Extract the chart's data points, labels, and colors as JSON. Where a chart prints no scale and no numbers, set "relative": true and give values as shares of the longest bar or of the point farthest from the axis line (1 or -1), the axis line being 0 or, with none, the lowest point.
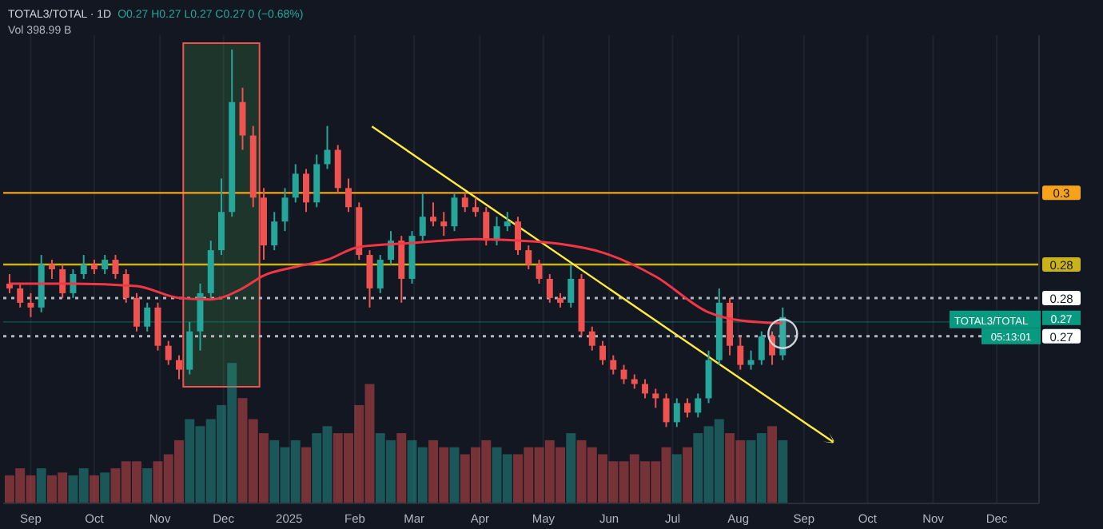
{
  "chart_data": [
    {
      "type": "candlestick",
      "title": "TOTAL3/TOTAL · 1D",
      "annotations": [
        "O0.27 H0.27 L0.27 C0.27 0 (−0.68%)",
        "Vol 398.99 B",
        {
          "text": "TOTAL3/TOTAL",
          "y": 0.273
        },
        "05:13:01"
      ],
      "x": [
        "2024-08-22",
        "2024-08-27",
        "2024-09-01",
        "2024-09-06",
        "2024-09-11",
        "2024-09-16",
        "2024-09-21",
        "2024-09-26",
        "2024-10-01",
        "2024-10-06",
        "2024-10-11",
        "2024-10-16",
        "2024-10-21",
        "2024-10-26",
        "2024-10-31",
        "2024-11-05",
        "2024-11-10",
        "2024-11-15",
        "2024-11-20",
        "2024-11-25",
        "2024-11-30",
        "2024-12-05",
        "2024-12-10",
        "2024-12-15",
        "2024-12-20",
        "2024-12-25",
        "2024-12-30",
        "2025-01-04",
        "2025-01-09",
        "2025-01-14",
        "2025-01-19",
        "2025-01-24",
        "2025-01-29",
        "2025-02-03",
        "2025-02-08",
        "2025-02-13",
        "2025-02-18",
        "2025-02-23",
        "2025-02-28",
        "2025-03-05",
        "2025-03-10",
        "2025-03-15",
        "2025-03-20",
        "2025-03-25",
        "2025-03-30",
        "2025-04-04",
        "2025-04-09",
        "2025-04-14",
        "2025-04-19",
        "2025-04-24",
        "2025-04-29",
        "2025-05-04",
        "2025-05-09",
        "2025-05-14",
        "2025-05-19",
        "2025-05-24",
        "2025-05-29",
        "2025-06-03",
        "2025-06-08",
        "2025-06-13",
        "2025-06-18",
        "2025-06-23",
        "2025-06-28",
        "2025-07-03",
        "2025-07-08",
        "2025-07-13",
        "2025-07-18",
        "2025-07-23",
        "2025-07-28",
        "2025-08-02",
        "2025-08-07",
        "2025-08-12",
        "2025-08-17",
        "2025-08-22"
      ],
      "series": [
        {
          "colors": [
            "#ef5350",
            "#ef5350",
            "#ef5350",
            "#26a69a",
            "#ef5350",
            "#ef5350",
            "#26a69a",
            "#26a69a",
            "#ef5350",
            "#26a69a",
            "#ef5350",
            "#ef5350",
            "#ef5350",
            "#26a69a",
            "#ef5350",
            "#ef5350",
            "#ef5350",
            "#26a69a",
            "#26a69a",
            "#26a69a",
            "#26a69a",
            "#26a69a",
            "#ef5350",
            "#ef5350",
            "#ef5350",
            "#26a69a",
            "#26a69a",
            "#26a69a",
            "#ef5350",
            "#26a69a",
            "#26a69a",
            "#ef5350",
            "#ef5350",
            "#ef5350",
            "#ef5350",
            "#26a69a",
            "#26a69a",
            "#ef5350",
            "#26a69a",
            "#26a69a",
            "#ef5350",
            "#ef5350",
            "#26a69a",
            "#ef5350",
            "#ef5350",
            "#ef5350",
            "#26a69a",
            "#26a69a",
            "#ef5350",
            "#ef5350",
            "#ef5350",
            "#ef5350",
            "#ef5350",
            "#26a69a",
            "#ef5350",
            "#ef5350",
            "#ef5350",
            "#ef5350",
            "#ef5350",
            "#ef5350",
            "#ef5350",
            "#ef5350",
            "#ef5350",
            "#26a69a",
            "#ef5350",
            "#26a69a",
            "#26a69a",
            "#26a69a",
            "#ef5350",
            "#ef5350",
            "#26a69a",
            "#26a69a",
            "#ef5350",
            "#26a69a"
          ],
          "ohlc": [
            [
              0.281,
              0.283,
              0.279,
              0.28
            ],
            [
              0.28,
              0.281,
              0.276,
              0.277
            ],
            [
              0.277,
              0.279,
              0.274,
              0.276
            ],
            [
              0.276,
              0.287,
              0.275,
              0.285
            ],
            [
              0.285,
              0.286,
              0.282,
              0.284
            ],
            [
              0.284,
              0.285,
              0.278,
              0.279
            ],
            [
              0.279,
              0.284,
              0.278,
              0.283
            ],
            [
              0.283,
              0.287,
              0.282,
              0.285
            ],
            [
              0.285,
              0.286,
              0.283,
              0.284
            ],
            [
              0.284,
              0.287,
              0.283,
              0.286
            ],
            [
              0.286,
              0.287,
              0.282,
              0.283
            ],
            [
              0.283,
              0.284,
              0.277,
              0.278
            ],
            [
              0.278,
              0.279,
              0.271,
              0.272
            ],
            [
              0.272,
              0.277,
              0.271,
              0.276
            ],
            [
              0.276,
              0.277,
              0.267,
              0.268
            ],
            [
              0.268,
              0.269,
              0.264,
              0.265
            ],
            [
              0.265,
              0.266,
              0.261,
              0.263
            ],
            [
              0.263,
              0.273,
              0.262,
              0.271
            ],
            [
              0.271,
              0.281,
              0.267,
              0.279
            ],
            [
              0.279,
              0.29,
              0.278,
              0.288
            ],
            [
              0.288,
              0.303,
              0.287,
              0.296
            ],
            [
              0.296,
              0.33,
              0.295,
              0.319
            ],
            [
              0.319,
              0.322,
              0.309,
              0.312
            ],
            [
              0.312,
              0.314,
              0.297,
              0.299
            ],
            [
              0.299,
              0.301,
              0.286,
              0.289
            ],
            [
              0.289,
              0.296,
              0.288,
              0.294
            ],
            [
              0.294,
              0.301,
              0.292,
              0.299
            ],
            [
              0.299,
              0.306,
              0.298,
              0.304
            ],
            [
              0.304,
              0.305,
              0.296,
              0.298
            ],
            [
              0.298,
              0.308,
              0.297,
              0.306
            ],
            [
              0.306,
              0.314,
              0.305,
              0.309
            ],
            [
              0.309,
              0.31,
              0.3,
              0.301
            ],
            [
              0.301,
              0.303,
              0.296,
              0.297
            ],
            [
              0.297,
              0.298,
              0.286,
              0.287
            ],
            [
              0.287,
              0.288,
              0.276,
              0.28
            ],
            [
              0.28,
              0.287,
              0.279,
              0.286
            ],
            [
              0.286,
              0.292,
              0.285,
              0.29
            ],
            [
              0.29,
              0.291,
              0.277,
              0.282
            ],
            [
              0.282,
              0.292,
              0.281,
              0.291
            ],
            [
              0.291,
              0.3,
              0.29,
              0.295
            ],
            [
              0.295,
              0.298,
              0.293,
              0.294
            ],
            [
              0.294,
              0.296,
              0.291,
              0.293
            ],
            [
              0.293,
              0.3,
              0.292,
              0.299
            ],
            [
              0.299,
              0.3,
              0.296,
              0.297
            ],
            [
              0.297,
              0.299,
              0.295,
              0.296
            ],
            [
              0.296,
              0.297,
              0.289,
              0.29
            ],
            [
              0.29,
              0.295,
              0.289,
              0.293
            ],
            [
              0.293,
              0.296,
              0.292,
              0.294
            ],
            [
              0.294,
              0.295,
              0.287,
              0.288
            ],
            [
              0.288,
              0.289,
              0.284,
              0.285
            ],
            [
              0.285,
              0.286,
              0.281,
              0.282
            ],
            [
              0.282,
              0.283,
              0.277,
              0.278
            ],
            [
              0.278,
              0.279,
              0.276,
              0.277
            ],
            [
              0.277,
              0.285,
              0.276,
              0.282
            ],
            [
              0.282,
              0.283,
              0.27,
              0.271
            ],
            [
              0.271,
              0.272,
              0.267,
              0.268
            ],
            [
              0.268,
              0.269,
              0.264,
              0.265
            ],
            [
              0.265,
              0.266,
              0.262,
              0.263
            ],
            [
              0.263,
              0.264,
              0.26,
              0.261
            ],
            [
              0.261,
              0.262,
              0.259,
              0.26
            ],
            [
              0.26,
              0.261,
              0.257,
              0.258
            ],
            [
              0.258,
              0.259,
              0.255,
              0.257
            ],
            [
              0.257,
              0.258,
              0.251,
              0.252
            ],
            [
              0.252,
              0.257,
              0.251,
              0.256
            ],
            [
              0.256,
              0.257,
              0.253,
              0.254
            ],
            [
              0.254,
              0.258,
              0.253,
              0.257
            ],
            [
              0.257,
              0.267,
              0.256,
              0.265
            ],
            [
              0.265,
              0.28,
              0.264,
              0.277
            ],
            [
              0.277,
              0.278,
              0.266,
              0.268
            ],
            [
              0.268,
              0.27,
              0.263,
              0.264
            ],
            [
              0.264,
              0.267,
              0.263,
              0.265
            ],
            [
              0.265,
              0.271,
              0.264,
              0.27
            ],
            [
              0.27,
              0.271,
              0.264,
              0.266
            ],
            [
              0.266,
              0.276,
              0.265,
              0.274
            ]
          ]
        },
        {
          "type": "line",
          "color": "#f23645",
          "x": [
            "2024-08-22",
            "2024-09-21",
            "2024-10-21",
            "2024-11-10",
            "2024-11-25",
            "2024-12-10",
            "2024-12-20",
            "2025-01-04",
            "2025-01-19",
            "2025-02-03",
            "2025-02-28",
            "2025-03-30",
            "2025-04-19",
            "2025-05-09",
            "2025-05-29",
            "2025-06-23",
            "2025-07-18",
            "2025-08-02",
            "2025-08-22"
          ],
          "values": [
            0.281,
            0.281,
            0.2805,
            0.278,
            0.2777,
            0.28,
            0.2827,
            0.2845,
            0.286,
            0.2887,
            0.2895,
            0.2903,
            0.29,
            0.2893,
            0.2875,
            0.2825,
            0.275,
            0.2733,
            0.2727
          ]
        }
      ],
      "xlim": [
        "2024-08-19",
        "2025-12-21"
      ],
      "xticks": [
        {
          "value": "2024-09-01",
          "label": "Sep"
        },
        {
          "value": "2024-10-01",
          "label": "Oct"
        },
        {
          "value": "2024-11-01",
          "label": "Nov"
        },
        {
          "value": "2024-12-01",
          "label": "Dec"
        },
        {
          "value": "2025-01-01",
          "label": "2025"
        },
        {
          "value": "2025-02-01",
          "label": "Feb"
        },
        {
          "value": "2025-03-01",
          "label": "Mar"
        },
        {
          "value": "2025-04-01",
          "label": "Apr"
        },
        {
          "value": "2025-05-01",
          "label": "May"
        },
        {
          "value": "2025-06-01",
          "label": "Jun"
        },
        {
          "value": "2025-07-01",
          "label": "Jul"
        },
        {
          "value": "2025-08-01",
          "label": "Aug"
        },
        {
          "value": "2025-09-01",
          "label": "Sep"
        },
        {
          "value": "2025-10-01",
          "label": "Oct"
        },
        {
          "value": "2025-11-01",
          "label": "Nov"
        },
        {
          "value": "2025-12-01",
          "label": "Dec"
        }
      ],
      "ylim": [
        0.235,
        0.333
      ],
      "yticks": [
        {
          "value": 0.3,
          "label": "0.3"
        },
        {
          "value": 0.285,
          "label": "0.28"
        },
        {
          "value": 0.278,
          "label": "0.28"
        },
        {
          "value": 0.27,
          "label": "0.27"
        }
      ],
      "ref_lines": [
        {
          "axis": "y",
          "value": 0.3,
          "color": "#f7a21b",
          "line_style": "solid"
        },
        {
          "axis": "y",
          "value": 0.285,
          "color": "#c9b21a",
          "line_style": "solid"
        },
        {
          "axis": "y",
          "value": 0.278,
          "color": "#b2b5be",
          "line_style": "dotted"
        },
        {
          "axis": "y",
          "value": 0.27,
          "color": "#b2b5be",
          "line_style": "dotted"
        },
        {
          "axis": "y",
          "value": 0.273,
          "label": "0.27",
          "color": "#089981",
          "line_style": "solid"
        }
      ],
      "bands": [
        {
          "axis": "x",
          "from": "2024-11-12",
          "to": "2024-12-18",
          "color": "#4caf50"
        }
      ],
      "grid": "x"
    },
    {
      "type": "bar",
      "relative": true,
      "tick_labels": false,
      "xlim": [
        "2024-08-19",
        "2025-12-21"
      ],
      "x": [
        "2024-08-22",
        "2024-08-27",
        "2024-09-01",
        "2024-09-06",
        "2024-09-11",
        "2024-09-16",
        "2024-09-21",
        "2024-09-26",
        "2024-10-01",
        "2024-10-06",
        "2024-10-11",
        "2024-10-16",
        "2024-10-21",
        "2024-10-26",
        "2024-10-31",
        "2024-11-05",
        "2024-11-10",
        "2024-11-15",
        "2024-11-20",
        "2024-11-25",
        "2024-11-30",
        "2024-12-05",
        "2024-12-10",
        "2024-12-15",
        "2024-12-20",
        "2024-12-25",
        "2024-12-30",
        "2025-01-04",
        "2025-01-09",
        "2025-01-14",
        "2025-01-19",
        "2025-01-24",
        "2025-01-29",
        "2025-02-03",
        "2025-02-08",
        "2025-02-13",
        "2025-02-18",
        "2025-02-23",
        "2025-02-28",
        "2025-03-05",
        "2025-03-10",
        "2025-03-15",
        "2025-03-20",
        "2025-03-25",
        "2025-03-30",
        "2025-04-04",
        "2025-04-09",
        "2025-04-14",
        "2025-04-19",
        "2025-04-24",
        "2025-04-29",
        "2025-05-04",
        "2025-05-09",
        "2025-05-14",
        "2025-05-19",
        "2025-05-24",
        "2025-05-29",
        "2025-06-03",
        "2025-06-08",
        "2025-06-13",
        "2025-06-18",
        "2025-06-23",
        "2025-06-28",
        "2025-07-03",
        "2025-07-08",
        "2025-07-13",
        "2025-07-18",
        "2025-07-23",
        "2025-07-28",
        "2025-08-02",
        "2025-08-07",
        "2025-08-12",
        "2025-08-17",
        "2025-08-22"
      ],
      "colors": [
        "#ef5350",
        "#ef5350",
        "#ef5350",
        "#26a69a",
        "#ef5350",
        "#ef5350",
        "#26a69a",
        "#26a69a",
        "#ef5350",
        "#26a69a",
        "#ef5350",
        "#ef5350",
        "#ef5350",
        "#26a69a",
        "#ef5350",
        "#ef5350",
        "#ef5350",
        "#26a69a",
        "#26a69a",
        "#26a69a",
        "#26a69a",
        "#26a69a",
        "#ef5350",
        "#ef5350",
        "#ef5350",
        "#26a69a",
        "#26a69a",
        "#26a69a",
        "#ef5350",
        "#26a69a",
        "#26a69a",
        "#ef5350",
        "#ef5350",
        "#ef5350",
        "#ef5350",
        "#26a69a",
        "#26a69a",
        "#ef5350",
        "#26a69a",
        "#26a69a",
        "#ef5350",
        "#ef5350",
        "#26a69a",
        "#ef5350",
        "#ef5350",
        "#ef5350",
        "#26a69a",
        "#26a69a",
        "#ef5350",
        "#ef5350",
        "#ef5350",
        "#ef5350",
        "#ef5350",
        "#26a69a",
        "#ef5350",
        "#ef5350",
        "#ef5350",
        "#ef5350",
        "#ef5350",
        "#ef5350",
        "#ef5350",
        "#ef5350",
        "#ef5350",
        "#26a69a",
        "#ef5350",
        "#26a69a",
        "#26a69a",
        "#26a69a",
        "#ef5350",
        "#ef5350",
        "#26a69a",
        "#26a69a",
        "#ef5350",
        "#26a69a"
      ],
      "values": [
        0.2,
        0.25,
        0.2,
        0.25,
        0.2,
        0.22,
        0.2,
        0.25,
        0.2,
        0.22,
        0.25,
        0.3,
        0.3,
        0.25,
        0.3,
        0.35,
        0.45,
        0.6,
        0.55,
        0.6,
        0.7,
        1,
        0.75,
        0.6,
        0.5,
        0.45,
        0.4,
        0.45,
        0.4,
        0.5,
        0.55,
        0.5,
        0.5,
        0.7,
        0.85,
        0.5,
        0.45,
        0.5,
        0.45,
        0.4,
        0.45,
        0.4,
        0.4,
        0.35,
        0.4,
        0.45,
        0.4,
        0.35,
        0.35,
        0.4,
        0.4,
        0.45,
        0.4,
        0.5,
        0.45,
        0.4,
        0.35,
        0.3,
        0.3,
        0.35,
        0.3,
        0.3,
        0.4,
        0.35,
        0.4,
        0.5,
        0.55,
        0.6,
        0.5,
        0.45,
        0.45,
        0.5,
        0.55,
        0.45
      ]
    }
  ]
}
